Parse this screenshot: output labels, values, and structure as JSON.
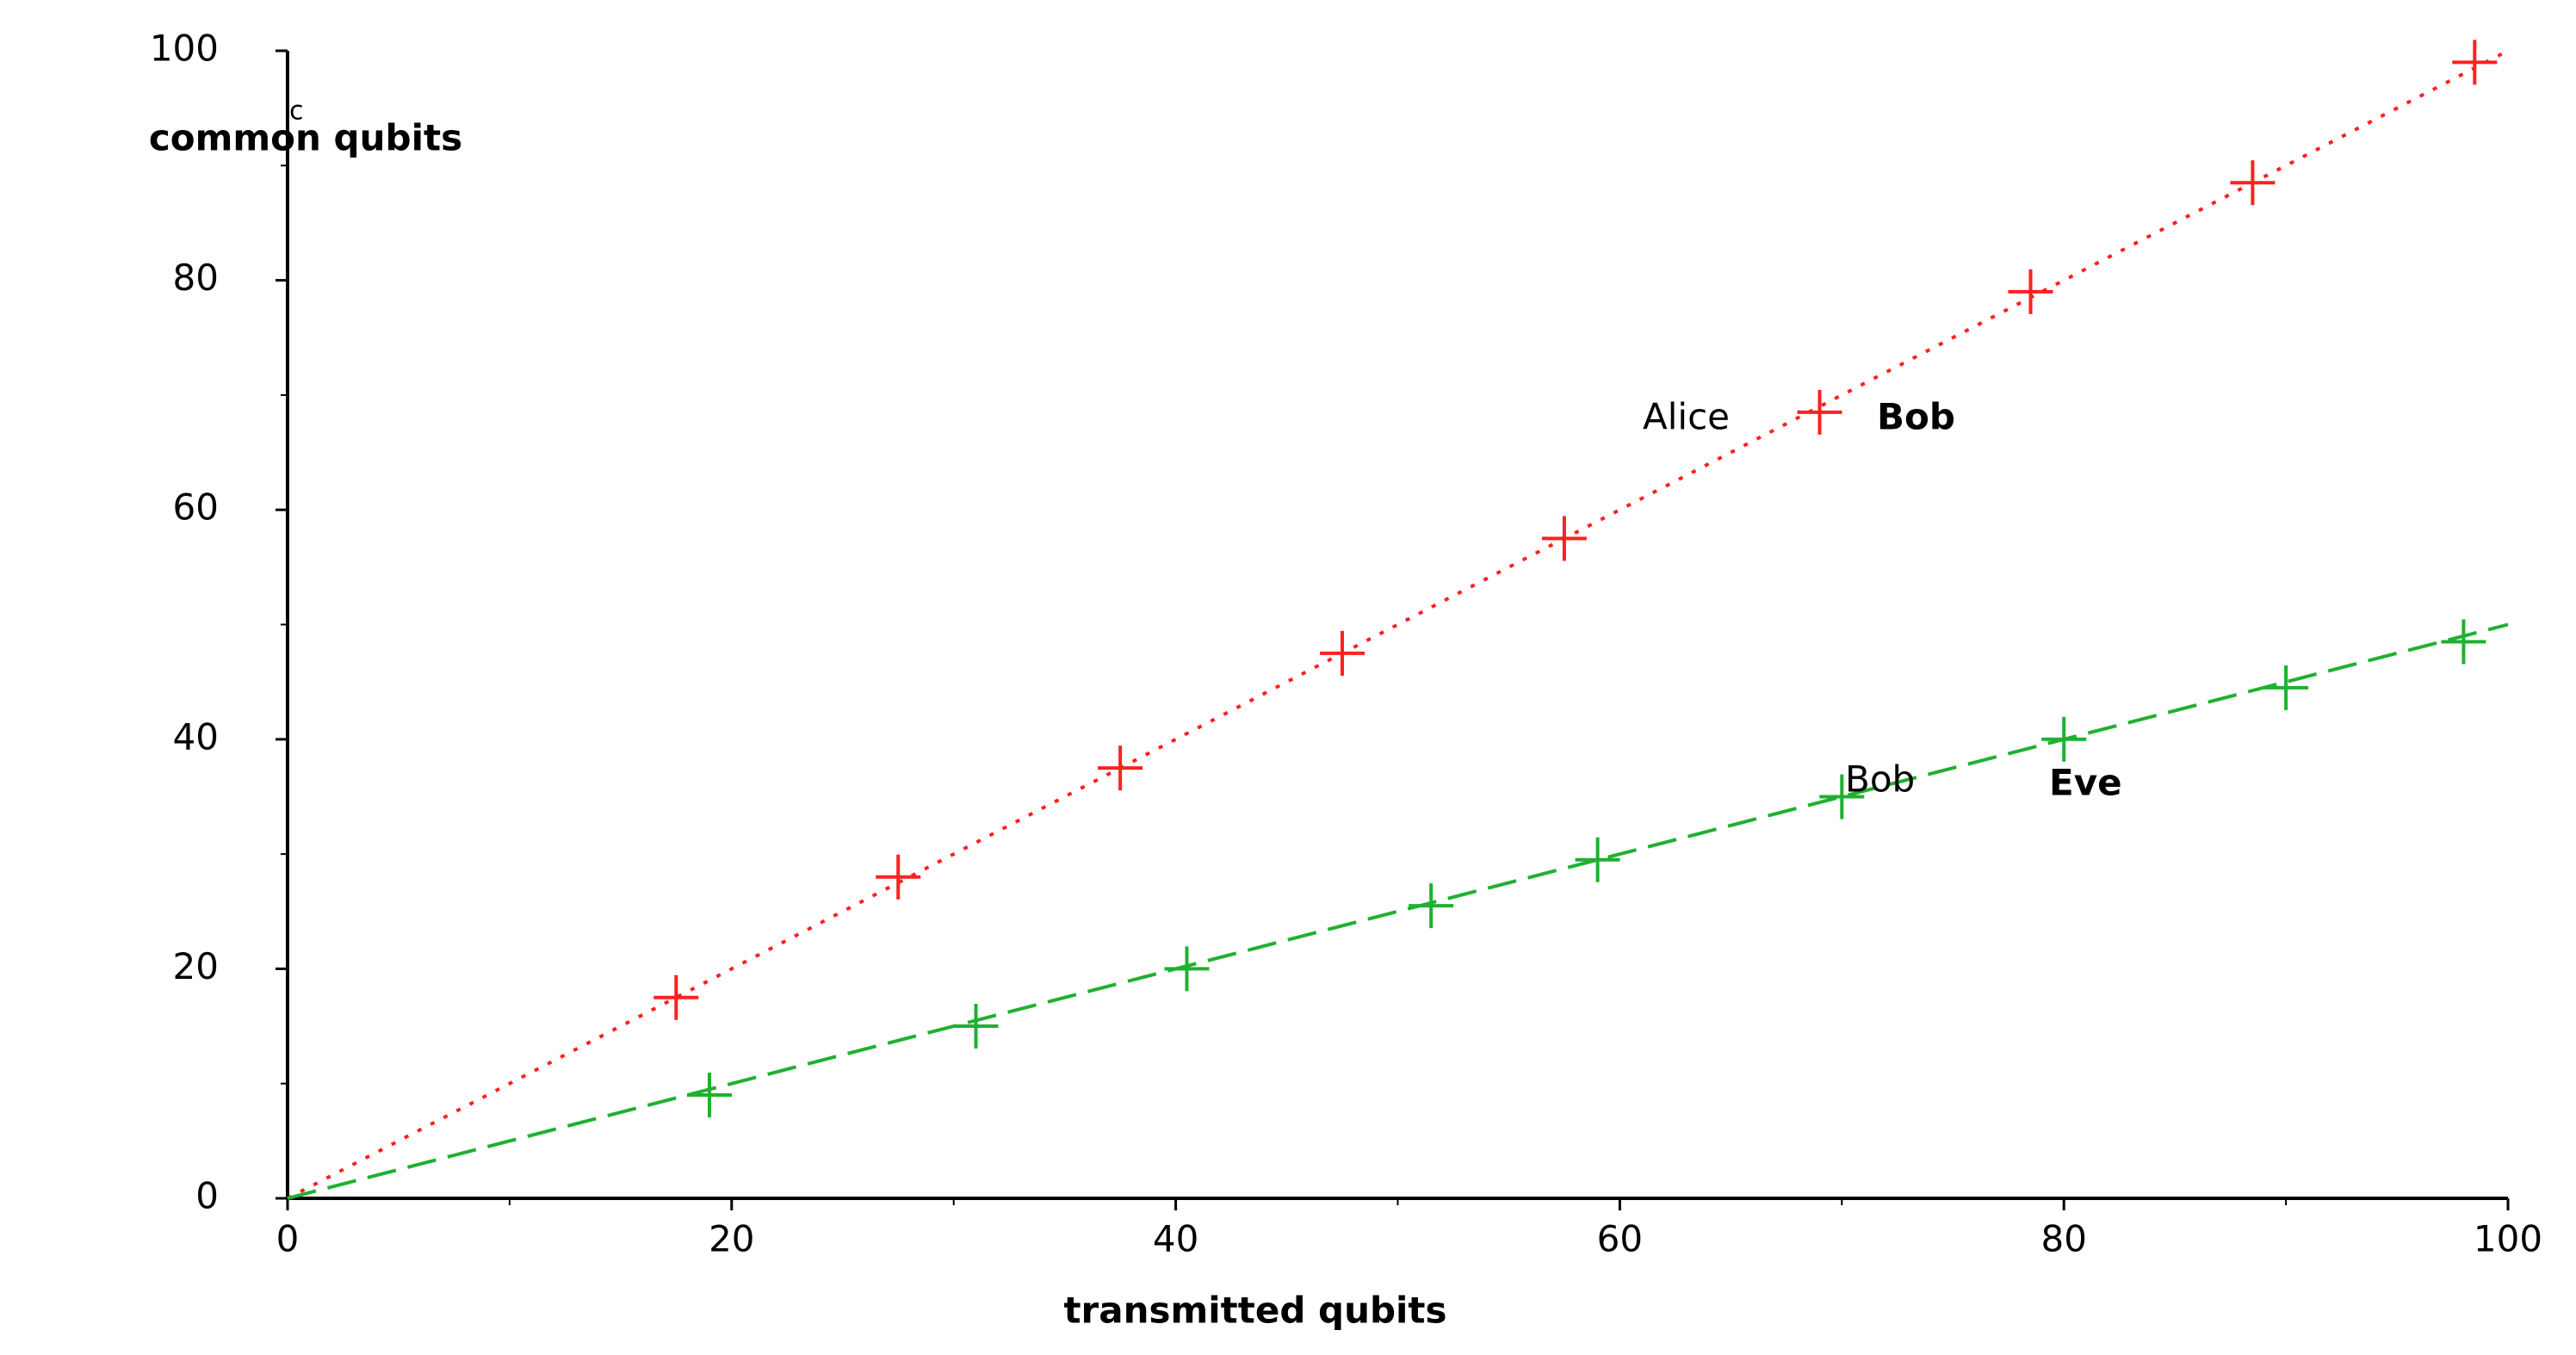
{
  "chart_data": {
    "type": "scatter",
    "xlabel": "transmitted qubits",
    "ylabel": "common qubits",
    "xlim": [
      0,
      100
    ],
    "ylim": [
      0,
      100
    ],
    "xticks": [
      0,
      20,
      40,
      60,
      80,
      100
    ],
    "yticks": [
      0,
      20,
      40,
      60,
      80,
      100
    ],
    "xminorticks": [
      10,
      30,
      50,
      70,
      90
    ],
    "yminorticks": [
      10,
      30,
      50,
      70,
      90
    ],
    "series": [
      {
        "color": "#ff2020",
        "marker": "+",
        "line_style": "dotted",
        "x": [
          17.5,
          27.5,
          37.5,
          47.5,
          57.5,
          69,
          78.5,
          88.5,
          98.5
        ],
        "values": [
          17.5,
          28,
          37.5,
          47.5,
          57.5,
          68.5,
          79,
          88.5,
          99
        ],
        "trend": {
          "x": [
            0,
            100
          ],
          "values": [
            0,
            100
          ]
        }
      },
      {
        "color": "#20b030",
        "marker": "+",
        "line_style": "dashed",
        "x": [
          19,
          31,
          40.5,
          51.5,
          59,
          70,
          80,
          90,
          98
        ],
        "values": [
          9,
          15,
          20,
          25.5,
          29.5,
          35,
          40,
          44.5,
          48.5
        ],
        "trend": {
          "x": [
            0,
            100
          ],
          "values": [
            0,
            50
          ]
        }
      }
    ],
    "annotations": [
      {
        "text": "c",
        "weight": "normal"
      },
      {
        "text": "Alice",
        "weight": "normal"
      },
      {
        "text": "Bob",
        "weight": "bold"
      },
      {
        "text": "Bob",
        "weight": "normal"
      },
      {
        "text": "Eve",
        "weight": "bold"
      }
    ]
  }
}
